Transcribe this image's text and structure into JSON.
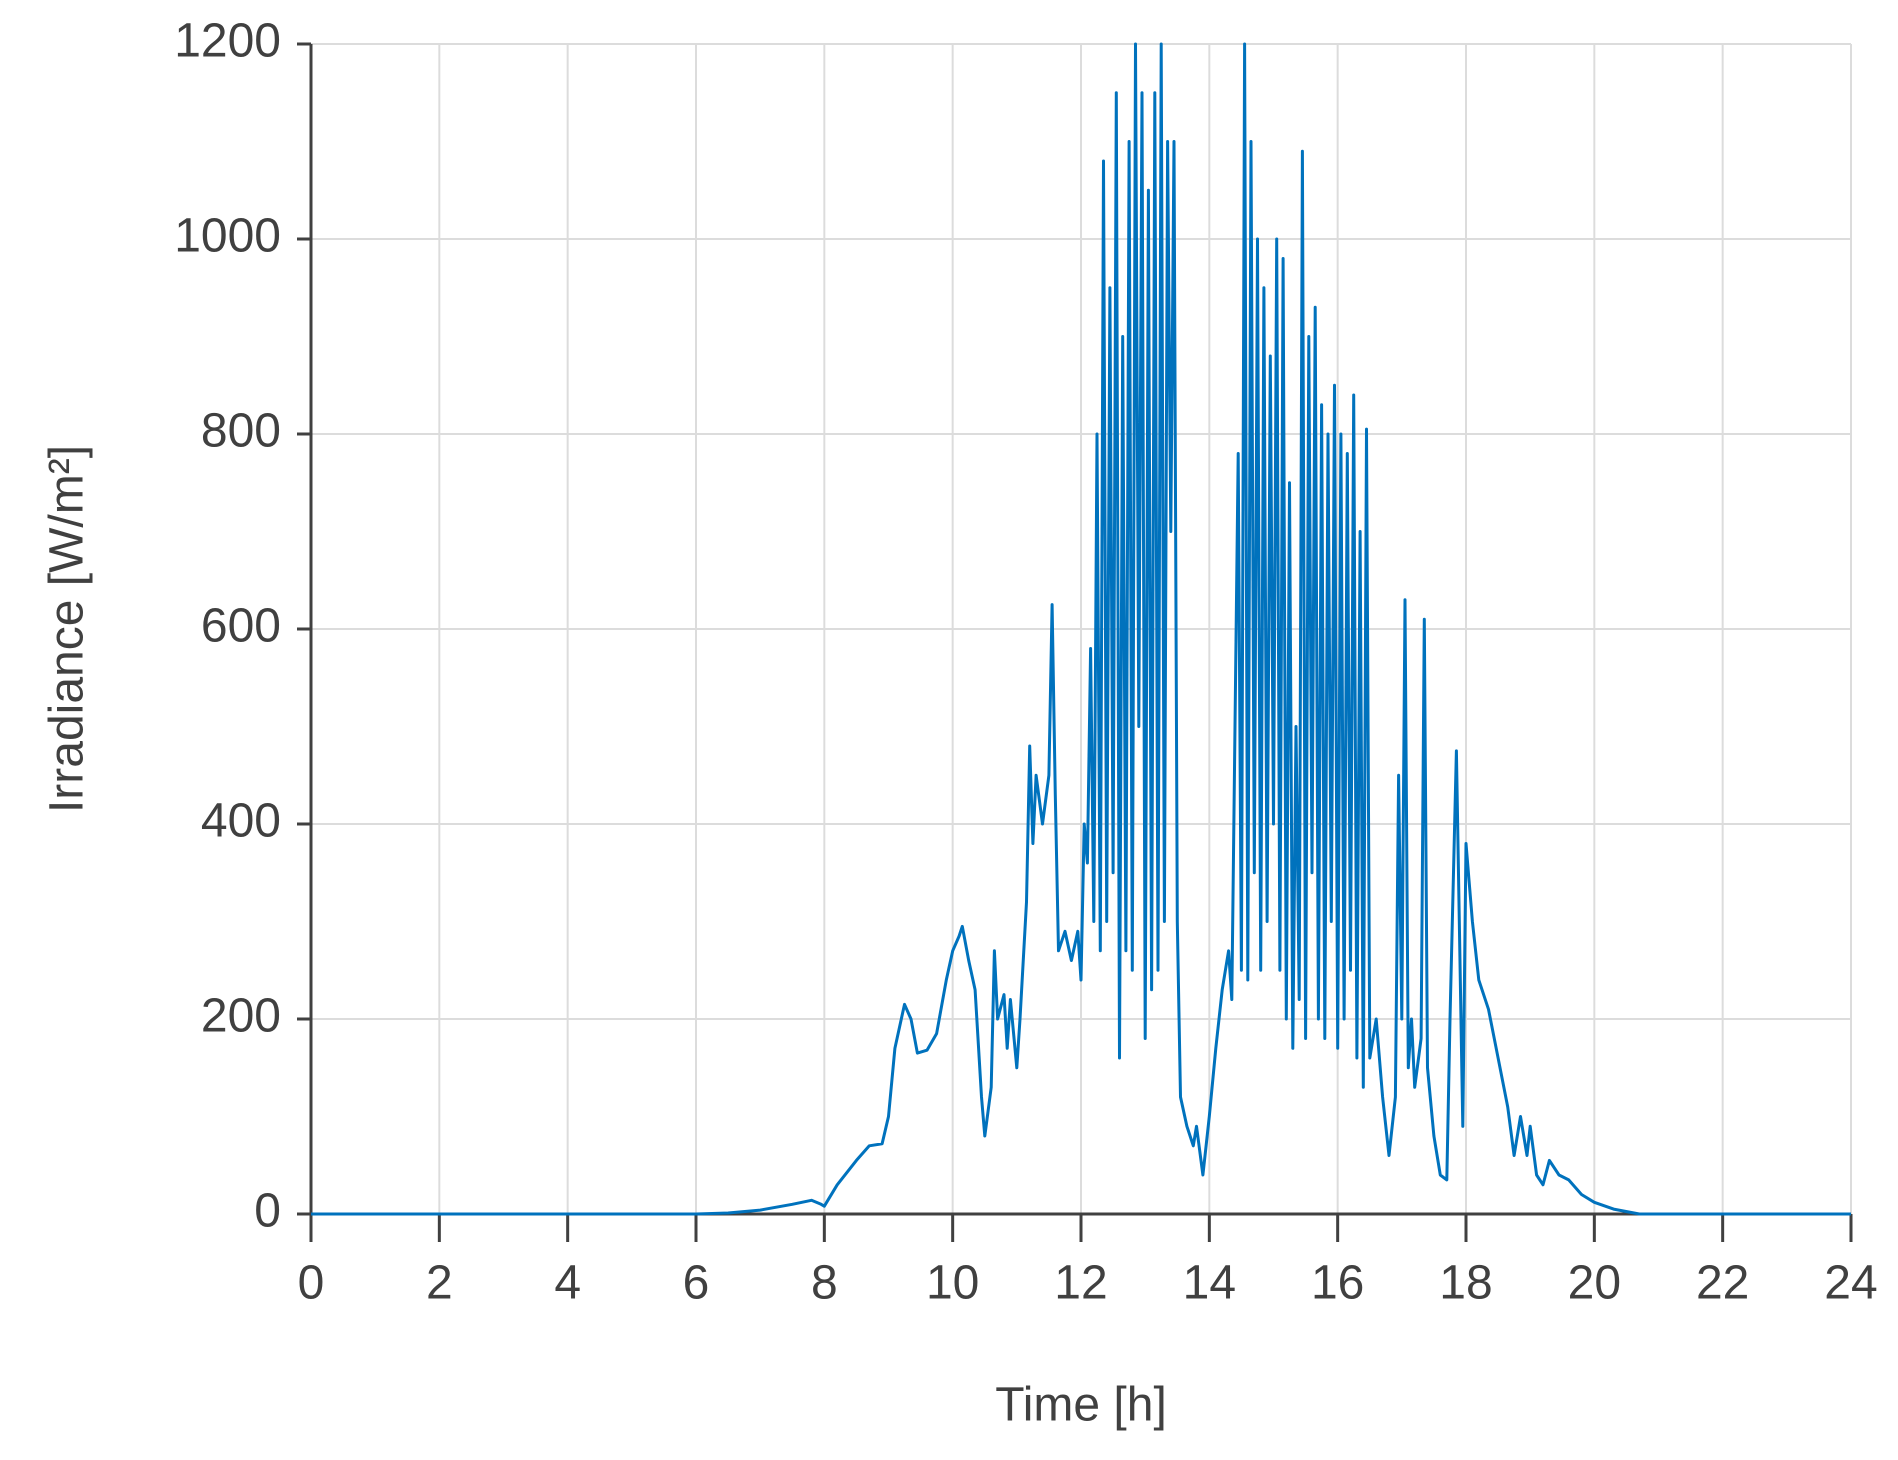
{
  "chart_data": {
    "type": "line",
    "x_label": "Time [h]",
    "y_label": "Irradiance [W/m²]",
    "x": [
      0,
      6,
      6.5,
      7,
      7.5,
      7.8,
      7.95,
      8,
      8.2,
      8.5,
      8.7,
      8.9,
      9.0,
      9.1,
      9.25,
      9.35,
      9.45,
      9.6,
      9.75,
      9.9,
      10.0,
      10.1,
      10.15,
      10.25,
      10.35,
      10.45,
      10.5,
      10.6,
      10.65,
      10.7,
      10.8,
      10.85,
      10.9,
      11.0,
      11.05,
      11.15,
      11.2,
      11.25,
      11.3,
      11.4,
      11.5,
      11.55,
      11.6,
      11.65,
      11.75,
      11.85,
      11.95,
      12.0,
      12.05,
      12.1,
      12.15,
      12.2,
      12.25,
      12.3,
      12.35,
      12.4,
      12.45,
      12.5,
      12.55,
      12.6,
      12.65,
      12.7,
      12.75,
      12.8,
      12.85,
      12.9,
      12.95,
      13.0,
      13.05,
      13.1,
      13.15,
      13.2,
      13.25,
      13.3,
      13.35,
      13.4,
      13.45,
      13.5,
      13.55,
      13.65,
      13.75,
      13.8,
      13.9,
      14.0,
      14.1,
      14.2,
      14.3,
      14.35,
      14.45,
      14.5,
      14.55,
      14.6,
      14.65,
      14.7,
      14.75,
      14.8,
      14.85,
      14.9,
      14.95,
      15.0,
      15.05,
      15.1,
      15.15,
      15.2,
      15.25,
      15.3,
      15.35,
      15.4,
      15.45,
      15.5,
      15.55,
      15.6,
      15.65,
      15.7,
      15.75,
      15.8,
      15.85,
      15.9,
      15.95,
      16.0,
      16.05,
      16.1,
      16.15,
      16.2,
      16.25,
      16.3,
      16.35,
      16.4,
      16.45,
      16.5,
      16.6,
      16.7,
      16.8,
      16.9,
      16.95,
      17.0,
      17.05,
      17.1,
      17.15,
      17.2,
      17.3,
      17.35,
      17.4,
      17.5,
      17.6,
      17.7,
      17.75,
      17.85,
      17.95,
      18.0,
      18.1,
      18.2,
      18.35,
      18.5,
      18.65,
      18.75,
      18.85,
      18.95,
      19.0,
      19.1,
      19.2,
      19.3,
      19.45,
      19.6,
      19.8,
      20.0,
      20.3,
      20.7,
      24
    ],
    "series": [
      {
        "color": "#0072bd",
        "values": [
          0,
          0,
          1,
          4,
          10,
          14,
          10,
          8,
          30,
          55,
          70,
          72,
          100,
          170,
          215,
          200,
          165,
          168,
          185,
          240,
          270,
          285,
          295,
          260,
          230,
          120,
          80,
          130,
          270,
          200,
          225,
          170,
          220,
          150,
          200,
          320,
          480,
          380,
          450,
          400,
          450,
          625,
          430,
          270,
          290,
          260,
          290,
          240,
          400,
          360,
          580,
          300,
          800,
          270,
          1080,
          300,
          950,
          350,
          1150,
          160,
          900,
          270,
          1100,
          250,
          1200,
          500,
          1150,
          180,
          1050,
          230,
          1150,
          250,
          1200,
          300,
          1100,
          700,
          1100,
          300,
          120,
          90,
          70,
          90,
          40,
          100,
          170,
          230,
          270,
          220,
          780,
          250,
          1200,
          240,
          1100,
          350,
          1000,
          250,
          950,
          300,
          880,
          400,
          1000,
          250,
          980,
          200,
          750,
          170,
          500,
          220,
          1090,
          180,
          900,
          350,
          930,
          200,
          830,
          180,
          800,
          300,
          850,
          170,
          800,
          200,
          780,
          250,
          840,
          160,
          700,
          130,
          805,
          160,
          200,
          120,
          60,
          120,
          450,
          200,
          630,
          150,
          200,
          130,
          180,
          610,
          150,
          80,
          40,
          35,
          200,
          475,
          90,
          380,
          300,
          240,
          210,
          160,
          110,
          60,
          100,
          60,
          90,
          40,
          30,
          55,
          40,
          35,
          20,
          12,
          5,
          0,
          0
        ]
      }
    ],
    "xlim": [
      0,
      24
    ],
    "xticks": [
      0,
      2,
      4,
      6,
      8,
      10,
      12,
      14,
      16,
      18,
      20,
      22,
      24
    ],
    "ylim": [
      0,
      1200
    ],
    "yticks": [
      0,
      200,
      400,
      600,
      800,
      1000,
      1200
    ],
    "grid": true
  }
}
